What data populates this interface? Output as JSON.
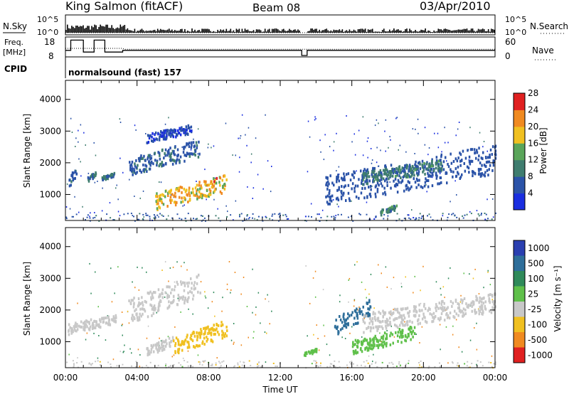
{
  "header": {
    "station": "King Salmon (fitACF)",
    "beam": "Beam 08",
    "date": "03/Apr/2010"
  },
  "summary": {
    "nsky_label": "N.Sky",
    "nsky_ticks": [
      "10^5",
      "10^0"
    ],
    "nsearch_label": "N.Search",
    "nsearch_ticks": [
      "10^5",
      "10^0"
    ],
    "freq_label": "Freq.",
    "freq_unit": "[MHz]",
    "freq_ticks": [
      "18",
      "8"
    ],
    "nave_label": "Nave",
    "nave_ticks": [
      "60",
      "0"
    ],
    "cpid_label": "CPID",
    "cpid_text": "normalsound (fast) 157",
    "freq_series": {
      "x": [
        0,
        0.3,
        0.3,
        1.0,
        1.0,
        1.6,
        1.6,
        2.2,
        2.2,
        3.2,
        3.2,
        13.2,
        13.2,
        13.5,
        13.5,
        24
      ],
      "y": [
        11,
        11,
        17,
        17,
        10,
        10,
        17,
        17,
        10,
        10,
        11,
        11,
        8,
        8,
        11,
        11
      ]
    },
    "nave_series": {
      "x": [
        0,
        3.2,
        3.3,
        13.2,
        13.5,
        24
      ],
      "y": [
        25,
        25,
        22,
        22,
        22,
        22
      ]
    }
  },
  "chart_data": [
    {
      "type": "heatmap",
      "title": "Power",
      "ylabel": "Slant Range [km]",
      "xlabel": "",
      "x_range": [
        0,
        24
      ],
      "x_unit": "hours UT",
      "ylim": [
        180,
        4600
      ],
      "yticks": [
        1000,
        2000,
        3000,
        4000
      ],
      "colorbar": {
        "label": "Power [dB]",
        "ticks": [
          "4",
          "8",
          "12",
          "16",
          "20",
          "24",
          "28"
        ],
        "range": [
          0,
          30
        ],
        "colors": [
          "#1a2ee0",
          "#2b53a8",
          "#3f7d6f",
          "#5aa55a",
          "#f0c020",
          "#f08a20",
          "#e02020"
        ]
      },
      "features": [
        {
          "t0": 0.1,
          "t1": 0.6,
          "r0": 1200,
          "r1": 1900,
          "value": 9
        },
        {
          "t0": 1.2,
          "t1": 1.7,
          "r0": 1450,
          "r1": 1750,
          "value": 12
        },
        {
          "t0": 2.0,
          "t1": 2.7,
          "r0": 1500,
          "r1": 1700,
          "value": 12
        },
        {
          "t0": 3.5,
          "t1": 7.5,
          "r0": 1700,
          "r1": 2700,
          "value": 10
        },
        {
          "t0": 4.5,
          "t1": 7.0,
          "r0": 2700,
          "r1": 3200,
          "value": 6
        },
        {
          "t0": 5.0,
          "t1": 9.0,
          "r0": 600,
          "r1": 1600,
          "value": 26
        },
        {
          "t0": 14.5,
          "t1": 24.0,
          "r0": 800,
          "r1": 2500,
          "value": 8
        },
        {
          "t0": 16.5,
          "t1": 21.0,
          "r0": 1400,
          "r1": 2100,
          "value": 13
        },
        {
          "t0": 17.5,
          "t1": 18.5,
          "r0": 400,
          "r1": 700,
          "value": 14
        }
      ]
    },
    {
      "type": "heatmap",
      "title": "Velocity",
      "ylabel": "Slant Range [km]",
      "xlabel": "Time UT",
      "x_range": [
        0,
        24
      ],
      "xticks": [
        "00:00",
        "04:00",
        "08:00",
        "12:00",
        "16:00",
        "20:00",
        "00:00"
      ],
      "ylim": [
        180,
        4600
      ],
      "yticks": [
        1000,
        2000,
        3000,
        4000
      ],
      "colorbar": {
        "label": "Velocity [m s⁻¹]",
        "ticks": [
          "1000",
          "500",
          "100",
          "25",
          "-25",
          "-100",
          "-500",
          "-1000"
        ],
        "colors": [
          "#2a3fb0",
          "#2e6e9a",
          "#2f8a5a",
          "#5fc04a",
          "#c8c8c8",
          "#f0c020",
          "#f08a20",
          "#e02020"
        ]
      },
      "features": [
        {
          "t0": 0.1,
          "t1": 2.8,
          "r0": 1300,
          "r1": 1900,
          "value": 0
        },
        {
          "t0": 3.5,
          "t1": 7.5,
          "r0": 1700,
          "r1": 3100,
          "value": 0
        },
        {
          "t0": 4.5,
          "t1": 6.0,
          "r0": 600,
          "r1": 1200,
          "value": 0
        },
        {
          "t0": 6.0,
          "t1": 9.0,
          "r0": 700,
          "r1": 1650,
          "value": -60
        },
        {
          "t0": 13.3,
          "t1": 14.0,
          "r0": 600,
          "r1": 800,
          "value": 60
        },
        {
          "t0": 15.0,
          "t1": 17.0,
          "r0": 1300,
          "r1": 2300,
          "value": 900
        },
        {
          "t0": 16.0,
          "t1": 19.5,
          "r0": 700,
          "r1": 1500,
          "value": 60
        },
        {
          "t0": 16.5,
          "t1": 24.0,
          "r0": 1400,
          "r1": 2500,
          "value": 0
        }
      ]
    }
  ]
}
